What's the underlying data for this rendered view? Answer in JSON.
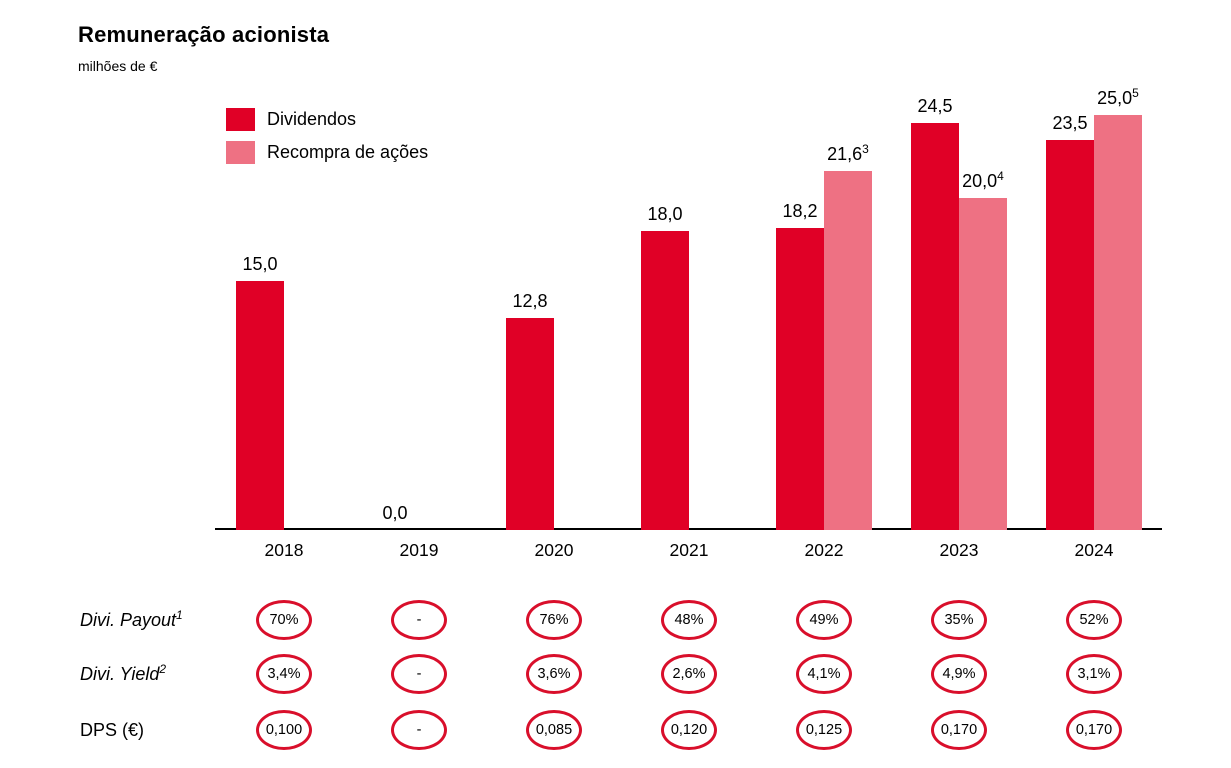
{
  "header": {
    "title": "Remuneração acionista",
    "subtitle": "milhões de €"
  },
  "colors": {
    "dividendos_red": "#e00026",
    "recompra_pink": "#ee7183",
    "ellipse_outline": "#d90f2b",
    "axis_black": "#000000"
  },
  "chart_data": {
    "type": "bar",
    "title": "Remuneração acionista",
    "ylabel": "milhões de €",
    "categories": [
      "2018",
      "2019",
      "2020",
      "2021",
      "2022",
      "2023",
      "2024"
    ],
    "series": [
      {
        "name": "Dividendos",
        "key": "dividendos",
        "color": "#e00026",
        "values": [
          15.0,
          0.0,
          12.8,
          18.0,
          18.2,
          24.5,
          23.5
        ],
        "labels": [
          "15,0",
          "0,0",
          "12,8",
          "18,0",
          "18,2",
          "24,5",
          "23,5"
        ],
        "superscripts": [
          "",
          "",
          "",
          "",
          "",
          "",
          ""
        ]
      },
      {
        "name": "Recompra de ações",
        "key": "recompra",
        "color": "#ee7183",
        "values": [
          null,
          null,
          null,
          null,
          21.6,
          20.0,
          25.0
        ],
        "labels": [
          "",
          "",
          "",
          "",
          "21,6",
          "20,0",
          "25,0"
        ],
        "superscripts": [
          "",
          "",
          "",
          "",
          "3",
          "4",
          "5"
        ]
      }
    ],
    "ylim": [
      0,
      27
    ],
    "grid": false,
    "legend_position": "top-left"
  },
  "table": {
    "rows": [
      {
        "key": "payout",
        "label": "Divi. Payout",
        "superscript": "1",
        "italic": true,
        "values": [
          "70%",
          "-",
          "76%",
          "48%",
          "49%",
          "35%",
          "52%"
        ]
      },
      {
        "key": "yield",
        "label": "Divi. Yield",
        "superscript": "2",
        "italic": true,
        "values": [
          "3,4%",
          "-",
          "3,6%",
          "2,6%",
          "4,1%",
          "4,9%",
          "3,1%"
        ]
      },
      {
        "key": "dps",
        "label": "DPS (€)",
        "superscript": "",
        "italic": false,
        "values": [
          "0,100",
          "-",
          "0,085",
          "0,120",
          "0,125",
          "0,170",
          "0,170"
        ]
      }
    ]
  }
}
